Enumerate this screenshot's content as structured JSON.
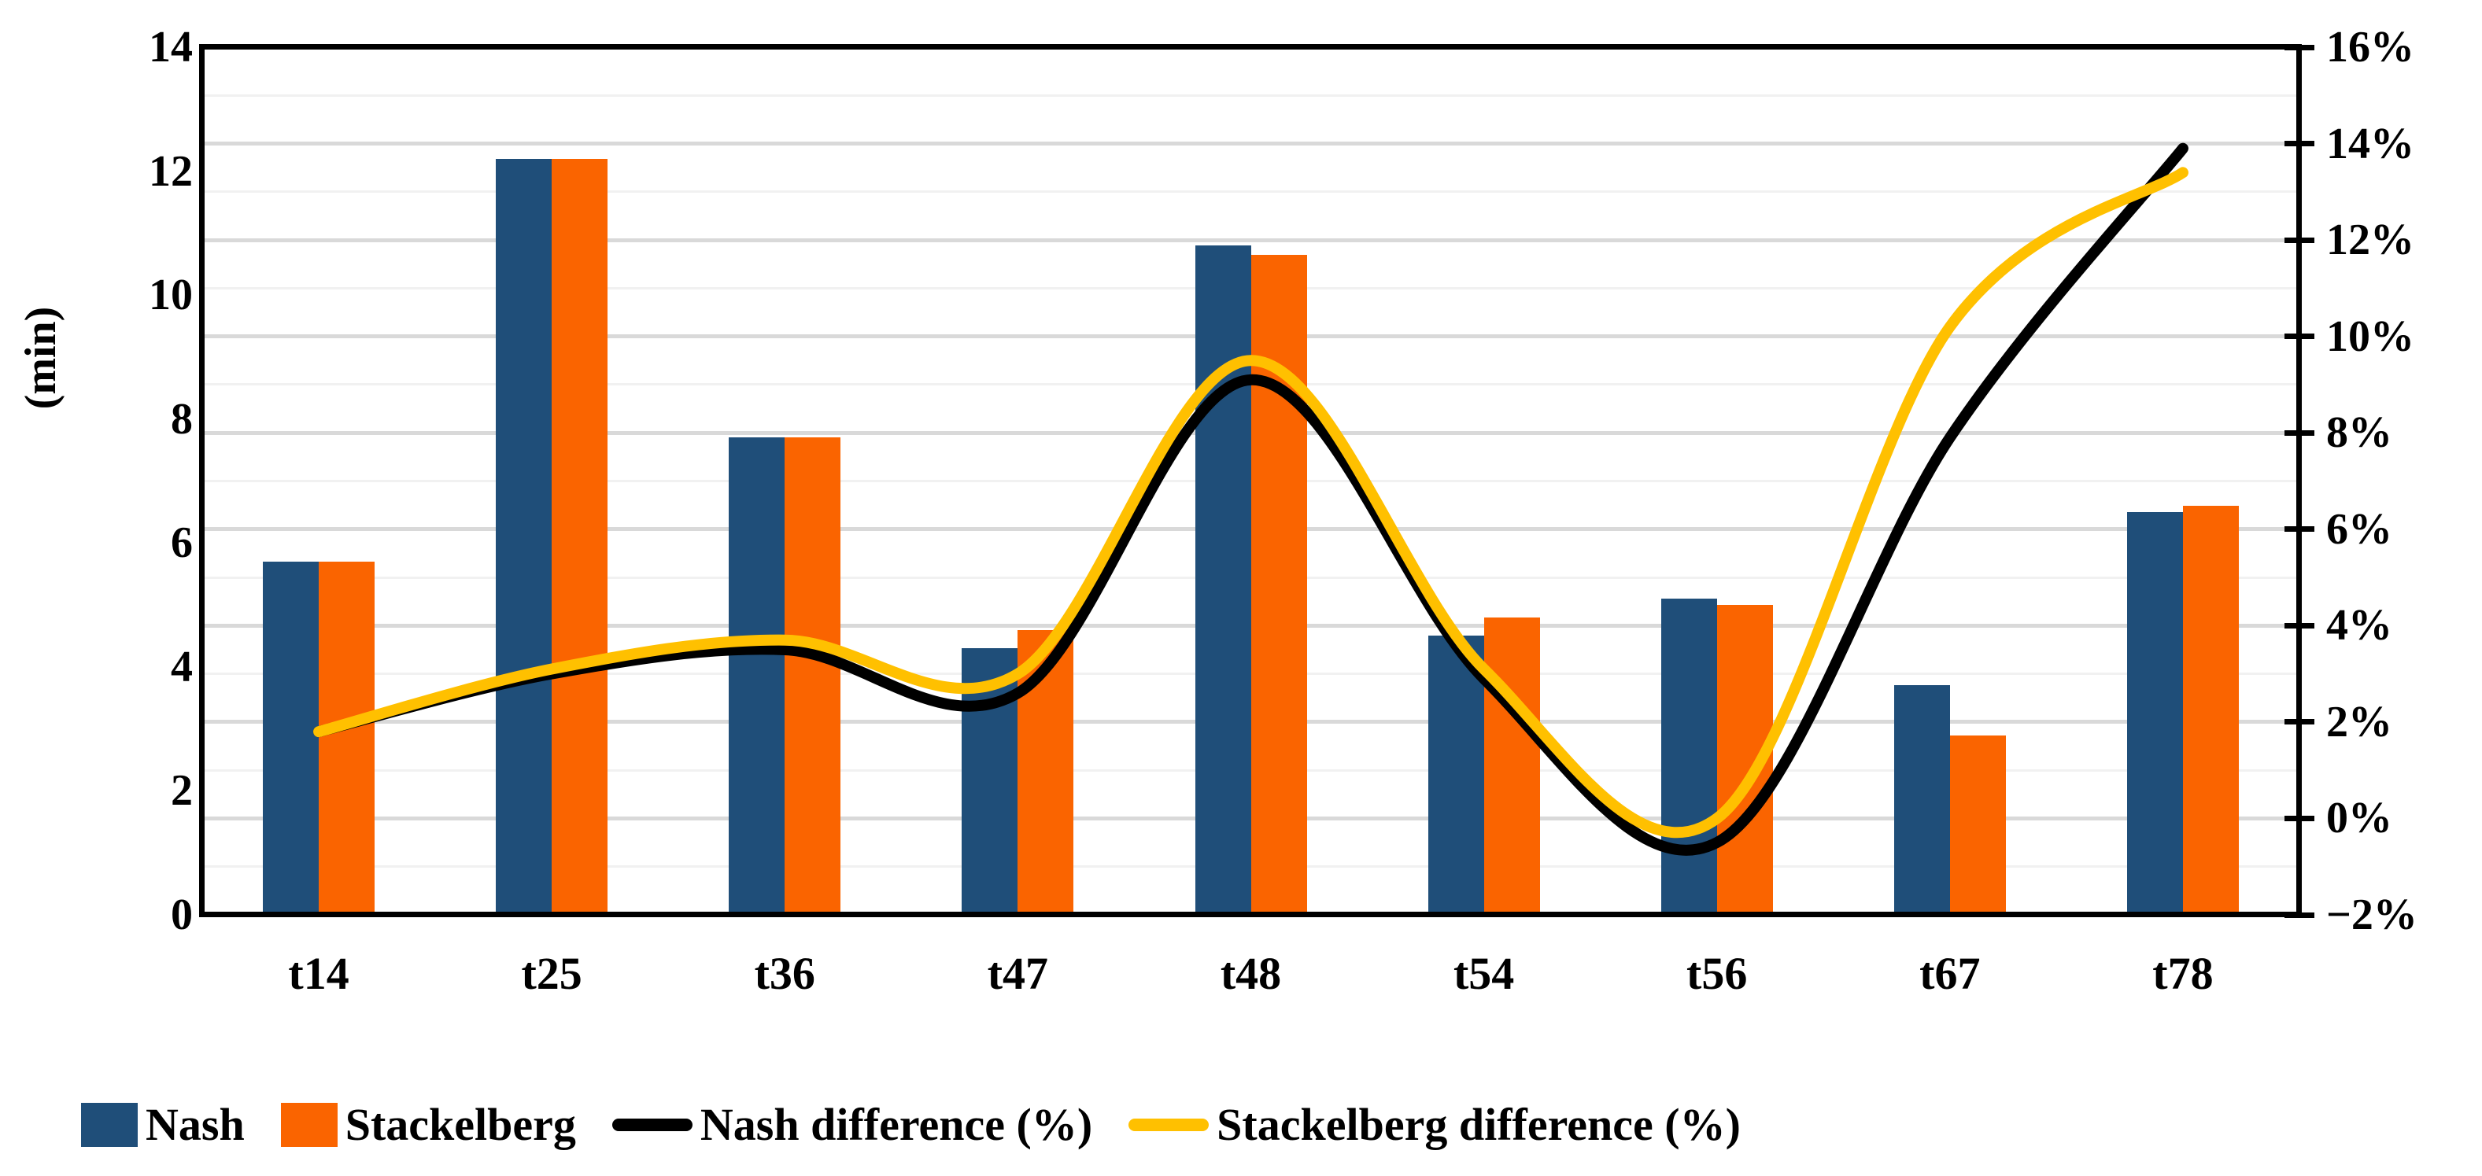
{
  "chart_data": {
    "type": "bar",
    "subtype": "combo-bar-line-dual-axis",
    "categories": [
      "t14",
      "t25",
      "t36",
      "t47",
      "t48",
      "t54",
      "t56",
      "t67",
      "t78"
    ],
    "series": [
      {
        "name": "Nash",
        "type": "bar",
        "axis": "left",
        "color": "#1F4E79",
        "values": [
          5.7,
          12.2,
          7.7,
          4.3,
          10.8,
          4.5,
          5.1,
          3.7,
          6.5
        ]
      },
      {
        "name": "Stackelberg",
        "type": "bar",
        "axis": "left",
        "color": "#FA6400",
        "values": [
          5.7,
          12.2,
          7.7,
          4.6,
          10.65,
          4.8,
          5.0,
          2.9,
          6.6
        ]
      },
      {
        "name": "Nash difference (%)",
        "type": "line",
        "axis": "right",
        "color": "#000000",
        "values": [
          1.8,
          3.0,
          3.5,
          2.6,
          9.1,
          2.9,
          -0.5,
          7.9,
          13.9
        ]
      },
      {
        "name": "Stackelberg difference (%)",
        "type": "line",
        "axis": "right",
        "color": "#FFC000",
        "values": [
          1.8,
          3.1,
          3.7,
          3.0,
          9.5,
          3.1,
          0.0,
          10.2,
          13.4
        ]
      }
    ],
    "left_axis": {
      "label": "(min)",
      "min": 0,
      "max": 14,
      "step": 2,
      "tick_labels": [
        "0",
        "2",
        "4",
        "6",
        "8",
        "10",
        "12",
        "14"
      ]
    },
    "right_axis": {
      "min": -2,
      "max": 16,
      "step": 2,
      "tick_labels": [
        "−2%",
        "0%",
        "2%",
        "4%",
        "6%",
        "8%",
        "10%",
        "12%",
        "14%",
        "16%"
      ]
    },
    "grid": {
      "major_color": "#D9D9D9",
      "minor_color": "#F1F1F1",
      "minor_every_percent": 1
    },
    "legend_position": "bottom",
    "title": "",
    "xlabel": "",
    "ylabel": "(min)"
  }
}
